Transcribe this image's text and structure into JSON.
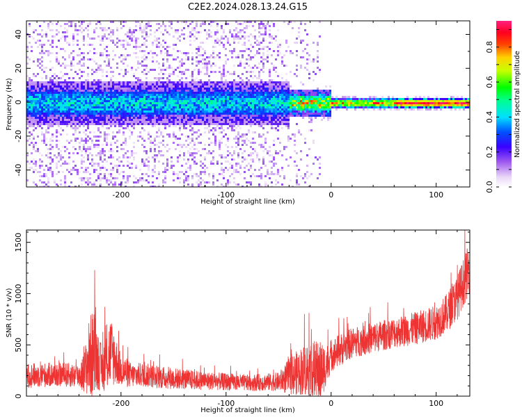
{
  "title": "C2E2.2024.028.13.24.G15",
  "chart_data": [
    {
      "type": "heatmap",
      "xlabel": "Height of straight line (km)",
      "ylabel": "Frequency (Hz)",
      "xlim": [
        -290,
        132
      ],
      "ylim": [
        -50,
        48
      ],
      "xticks": [
        -200,
        -100,
        0,
        100
      ],
      "yticks": [
        -40,
        -20,
        0,
        20,
        40
      ],
      "colorbar": {
        "label": "Normalized spectral amplitude",
        "range": [
          0.0,
          0.95
        ],
        "ticks": [
          0.0,
          0.2,
          0.4,
          0.6,
          0.8
        ],
        "colormap": "white-purple-blue-cyan-green-yellow-red-magenta"
      },
      "features": {
        "noise_spread_region_x": [
          -290,
          -10
        ],
        "noise_spread_hz": 48,
        "main_band_center_hz": 0,
        "main_band_halfwidth_hz_left": 6,
        "main_band_halfwidth_hz_right": 1.5,
        "high_amplitude_region_x": [
          -50,
          132
        ]
      }
    },
    {
      "type": "line",
      "xlabel": "Height of straight line (km)",
      "ylabel": "SNR (10 * v/v)",
      "xlim": [
        -290,
        132
      ],
      "ylim": [
        0,
        1620
      ],
      "xticks": [
        -200,
        -100,
        0,
        100
      ],
      "yticks": [
        0,
        500,
        1000,
        1500
      ],
      "color": "#ee3333",
      "profile": {
        "x": [
          -290,
          -260,
          -240,
          -235,
          -230,
          -226,
          -222,
          -218,
          -214,
          -210,
          -205,
          -200,
          -195,
          -190,
          -180,
          -160,
          -120,
          -80,
          -50,
          -40,
          -30,
          -20,
          -15,
          -10,
          -5,
          0,
          10,
          20,
          40,
          60,
          80,
          100,
          110,
          120,
          132
        ],
        "mean": [
          200,
          210,
          200,
          230,
          380,
          420,
          350,
          260,
          330,
          440,
          350,
          250,
          230,
          200,
          210,
          180,
          150,
          130,
          140,
          190,
          240,
          270,
          230,
          240,
          300,
          400,
          460,
          520,
          570,
          620,
          660,
          720,
          810,
          960,
          1260
        ],
        "spread": [
          120,
          120,
          120,
          200,
          400,
          450,
          300,
          200,
          300,
          350,
          250,
          150,
          150,
          120,
          120,
          110,
          90,
          80,
          90,
          180,
          230,
          280,
          320,
          300,
          200,
          160,
          160,
          150,
          150,
          150,
          160,
          170,
          190,
          220,
          250
        ]
      }
    }
  ]
}
